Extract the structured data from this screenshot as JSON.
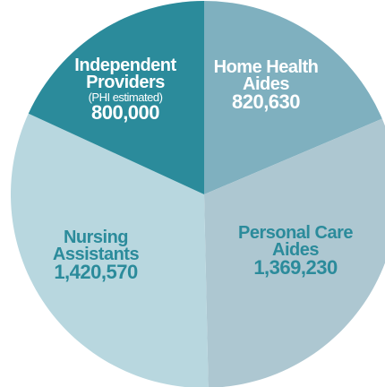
{
  "chart_data": {
    "type": "pie",
    "categories": [
      "Home Health Aides",
      "Personal Care Aides",
      "Nursing Assistants",
      "Independent Providers"
    ],
    "values": [
      820630,
      1369230,
      1420570,
      800000
    ],
    "value_labels": [
      "820,630",
      "1,369,230",
      "1,420,570",
      "800,000"
    ],
    "notes": [
      null,
      null,
      null,
      "(PHI estimated)"
    ],
    "colors": [
      "#7fb0bf",
      "#adc7d1",
      "#b8d7df",
      "#2b8b9b"
    ],
    "label_colors": [
      "#ffffff",
      "#2b8b9b",
      "#2b8b9b",
      "#ffffff"
    ]
  }
}
